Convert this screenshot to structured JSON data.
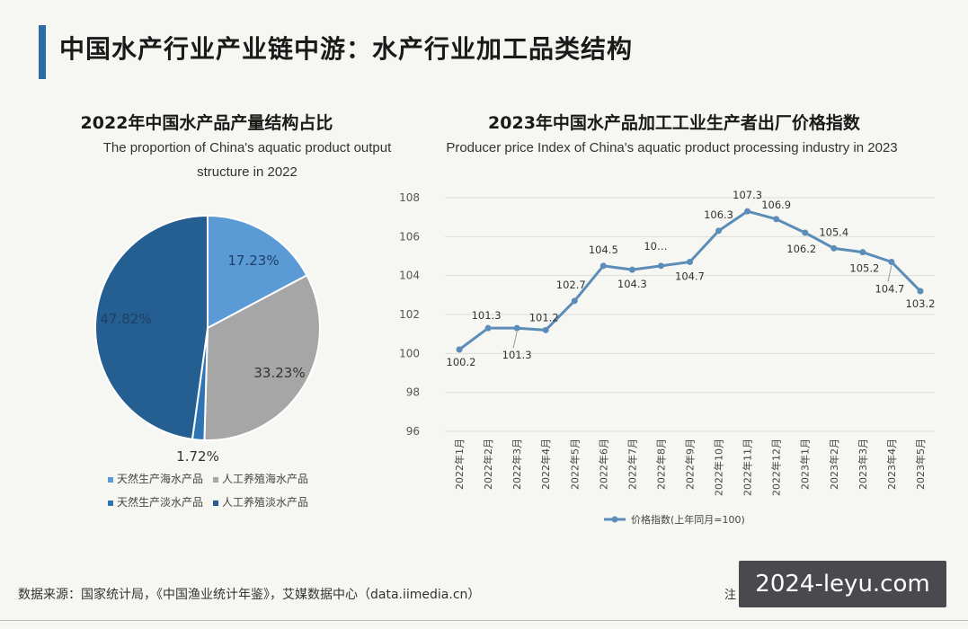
{
  "page": {
    "title": "中国水产行业产业链中游：水产行业加工品类结构"
  },
  "left_chart": {
    "title": "2022年中国水产品产量结构占比",
    "subtitle_line1": "The proportion of China's aquatic product output",
    "subtitle_line2": "structure in 2022"
  },
  "right_chart": {
    "title": "2023年中国水产品加工工业生产者出厂价格指数",
    "subtitle": "Producer price Index of China's aquatic product processing industry in 2023"
  },
  "footer": {
    "source": "数据来源：国家统计局，《中国渔业统计年鉴》，艾媒数据中心（data.iimedia.cn）",
    "note": "注"
  },
  "watermark": "2024-leyu.com",
  "chart_data": [
    {
      "type": "pie",
      "title": "2022年中国水产品产量结构占比",
      "subtitle": "The proportion of China's aquatic product output structure in 2022",
      "slices": [
        {
          "name": "天然生产海水产品",
          "value": 17.23,
          "label": "17.23%",
          "color": "#5b9bd5"
        },
        {
          "name": "人工养殖海水产品",
          "value": 33.23,
          "label": "33.23%",
          "color": "#a6a6a6"
        },
        {
          "name": "天然生产淡水产品",
          "value": 1.72,
          "label": "1.72%",
          "color": "#2e75b6"
        },
        {
          "name": "人工养殖淡水产品",
          "value": 47.82,
          "label": "47.82%",
          "color": "#255e91"
        }
      ],
      "legend_placement": "bottom"
    },
    {
      "type": "line",
      "title": "2023年中国水产品加工工业生产者出厂价格指数",
      "subtitle": "Producer price Index of China's aquatic product processing industry in 2023",
      "categories": [
        "2022年1月",
        "2022年2月",
        "2022年3月",
        "2022年4月",
        "2022年5月",
        "2022年6月",
        "2022年7月",
        "2022年8月",
        "2022年9月",
        "2022年10月",
        "2022年11月",
        "2022年12月",
        "2023年1月",
        "2023年2月",
        "2023年3月",
        "2023年4月",
        "2023年5月"
      ],
      "series": [
        {
          "name": "价格指数(上年同月=100)",
          "color": "#5b8db8",
          "values": [
            100.2,
            101.3,
            101.3,
            101.2,
            102.7,
            104.5,
            104.3,
            104.5,
            104.7,
            106.3,
            107.3,
            106.9,
            106.2,
            105.4,
            105.2,
            104.7,
            103.2
          ],
          "labels": [
            "100.2",
            "101.3",
            "101.3",
            "101.2",
            "102.7",
            "104.5",
            "104.3",
            "10…",
            "104.7",
            "106.3",
            "107.3",
            "106.9",
            "106.2",
            "105.4",
            "105.2",
            "104.7",
            "103.2"
          ]
        }
      ],
      "ylim": [
        96,
        108
      ],
      "yticks": [
        96,
        98,
        100,
        102,
        104,
        106,
        108
      ],
      "grid": true,
      "legend_placement": "bottom"
    }
  ]
}
